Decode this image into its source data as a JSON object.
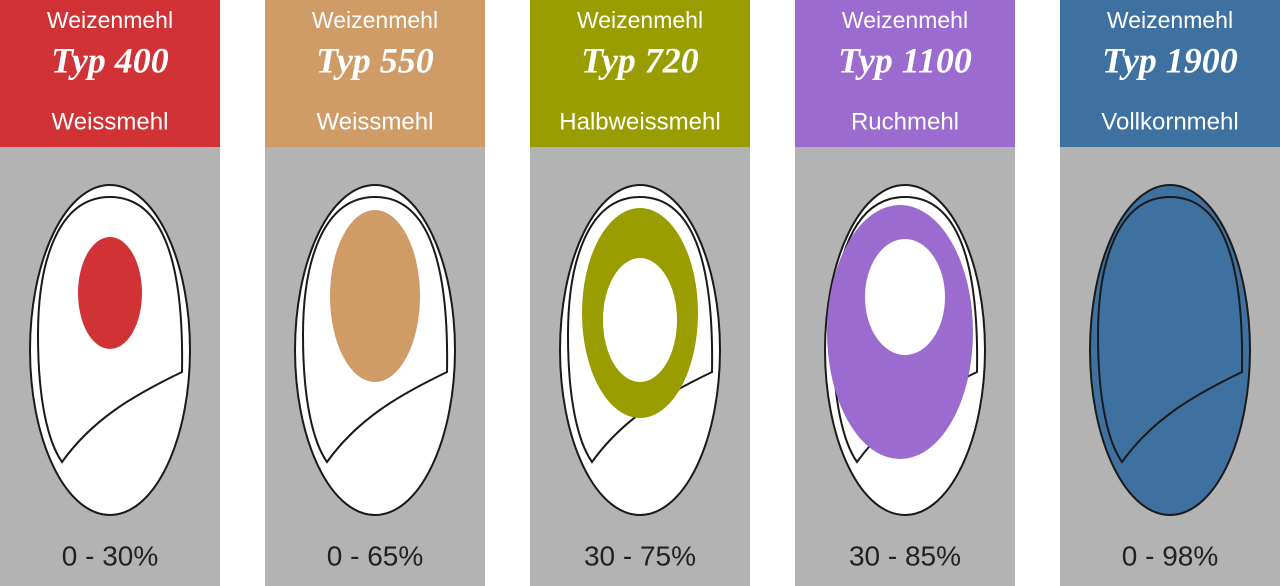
{
  "cards": [
    {
      "flour": "Weizenmehl",
      "type": "Typ 400",
      "name": "Weissmehl",
      "range": "0 - 30%",
      "color": "#d03236"
    },
    {
      "flour": "Weizenmehl",
      "type": "Typ 550",
      "name": "Weissmehl",
      "range": "0 - 65%",
      "color": "#cf9b67"
    },
    {
      "flour": "Weizenmehl",
      "type": "Typ 720",
      "name": "Halbweissmehl",
      "range": "30 - 75%",
      "color": "#9a9d00"
    },
    {
      "flour": "Weizenmehl",
      "type": "Typ 1100",
      "name": "Ruchmehl",
      "range": "30 - 85%",
      "color": "#9b6bcf"
    },
    {
      "flour": "Weizenmehl",
      "type": "Typ 1900",
      "name": "Vollkornmehl",
      "range": "0 - 98%",
      "color": "#3e71a0"
    }
  ]
}
